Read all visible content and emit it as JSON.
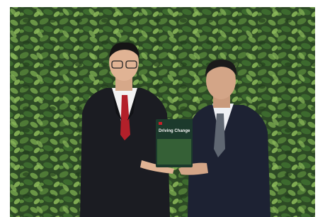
{
  "book": {
    "title": "Driving Change"
  }
}
